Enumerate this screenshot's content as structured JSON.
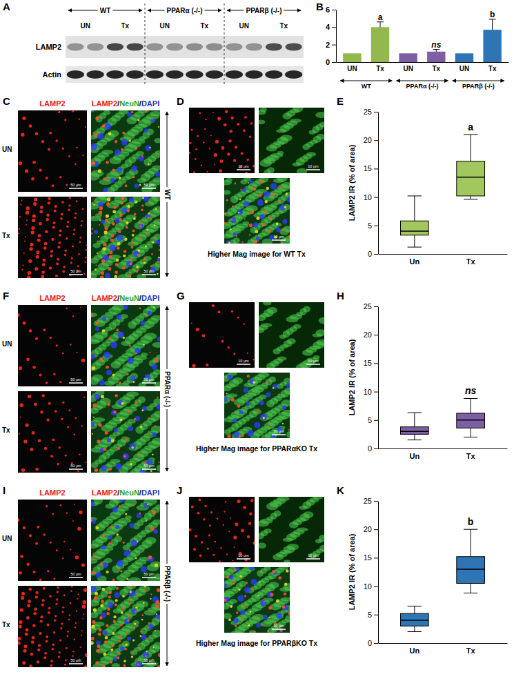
{
  "figure": {
    "blot": {
      "panel": "A",
      "groups": [
        "WT",
        "PPARα (-/-)",
        "PPARβ (-/-)"
      ],
      "lanes": [
        "UN",
        "Tx"
      ],
      "rows": [
        "LAMP2",
        "Actin"
      ]
    },
    "micrograph_rows": [
      "UN",
      "Tx"
    ],
    "channel_title": {
      "text": "LAMP2",
      "color": "#e8201c"
    },
    "merged_title": [
      {
        "text": "LAMP2",
        "color": "#e8201c"
      },
      {
        "text": "/",
        "color": "#000000"
      },
      {
        "text": "NeuN",
        "color": "#2ca02c"
      },
      {
        "text": "/",
        "color": "#000000"
      },
      {
        "text": "DAPI",
        "color": "#1f3fbf"
      }
    ],
    "scale_bars": {
      "overview": "50 μm",
      "zoom": "10 μm"
    },
    "micrographs": [
      {
        "panel": "C",
        "zoom_panel": "D",
        "genotype": "WT",
        "caption": "Higher Mag image for WT Tx"
      },
      {
        "panel": "F",
        "zoom_panel": "G",
        "genotype": "PPARα (-/-)",
        "caption": "Higher Mag image for PPARαKO Tx"
      },
      {
        "panel": "I",
        "zoom_panel": "J",
        "genotype": "PPARβ (-/-)",
        "caption": "Higher Mag image for PPARβKO Tx"
      }
    ]
  },
  "chart_data": [
    {
      "type": "bar",
      "panel": "B",
      "categories": [
        "UN",
        "Tx",
        "UN",
        "Tx",
        "UN",
        "Tx"
      ],
      "groups": [
        "WT",
        "PPARα (-/-)",
        "PPARβ (-/-)"
      ],
      "values": [
        1,
        4,
        1,
        1.2,
        1,
        3.7
      ],
      "errors": [
        0,
        0.6,
        0,
        0.25,
        0,
        1.2
      ],
      "colors": [
        "#92b84e",
        "#92b84e",
        "#7e5fa4",
        "#7e5fa4",
        "#2e75b6",
        "#2e75b6"
      ],
      "ylim": [
        0,
        6
      ],
      "yticks": [
        0,
        2,
        4,
        6
      ],
      "annotations": [
        {
          "index": 1,
          "text": "a"
        },
        {
          "index": 3,
          "text": "ns"
        },
        {
          "index": 5,
          "text": "b"
        }
      ]
    },
    {
      "type": "box",
      "panel": "E",
      "categories": [
        "Un",
        "Tx"
      ],
      "y_label": "LAMP2 IR (% of area)",
      "boxes": [
        {
          "min": 1.2,
          "q1": 3.3,
          "median": 4,
          "q3": 5.8,
          "max": 10.2
        },
        {
          "min": 9.6,
          "q1": 10.2,
          "median": 13.5,
          "q3": 16.3,
          "max": 21
        }
      ],
      "color": "#a2c75e",
      "ylim": [
        0,
        25
      ],
      "yticks": [
        0,
        5,
        10,
        15,
        20,
        25
      ],
      "annotations": [
        {
          "index": 1,
          "text": "a"
        }
      ]
    },
    {
      "type": "box",
      "panel": "H",
      "categories": [
        "Un",
        "Tx"
      ],
      "y_label": "LAMP2 IR (% of area)",
      "boxes": [
        {
          "min": 1.5,
          "q1": 2.5,
          "median": 3,
          "q3": 3.8,
          "max": 6.3
        },
        {
          "min": 2,
          "q1": 3.6,
          "median": 5,
          "q3": 6.2,
          "max": 8.8
        }
      ],
      "color": "#7e5fa4",
      "ylim": [
        0,
        25
      ],
      "yticks": [
        0,
        5,
        10,
        15,
        20,
        25
      ],
      "annotations": [
        {
          "index": 1,
          "text": "ns"
        }
      ]
    },
    {
      "type": "box",
      "panel": "K",
      "categories": [
        "Un",
        "Tx"
      ],
      "y_label": "LAMP2 IR (% of area)",
      "boxes": [
        {
          "min": 2,
          "q1": 3,
          "median": 4,
          "q3": 5.2,
          "max": 6.5
        },
        {
          "min": 8.8,
          "q1": 10.5,
          "median": 13,
          "q3": 15.2,
          "max": 20
        }
      ],
      "color": "#2e75b6",
      "ylim": [
        0,
        25
      ],
      "yticks": [
        0,
        5,
        10,
        15,
        20,
        25
      ],
      "annotations": [
        {
          "index": 1,
          "text": "b"
        }
      ]
    }
  ]
}
